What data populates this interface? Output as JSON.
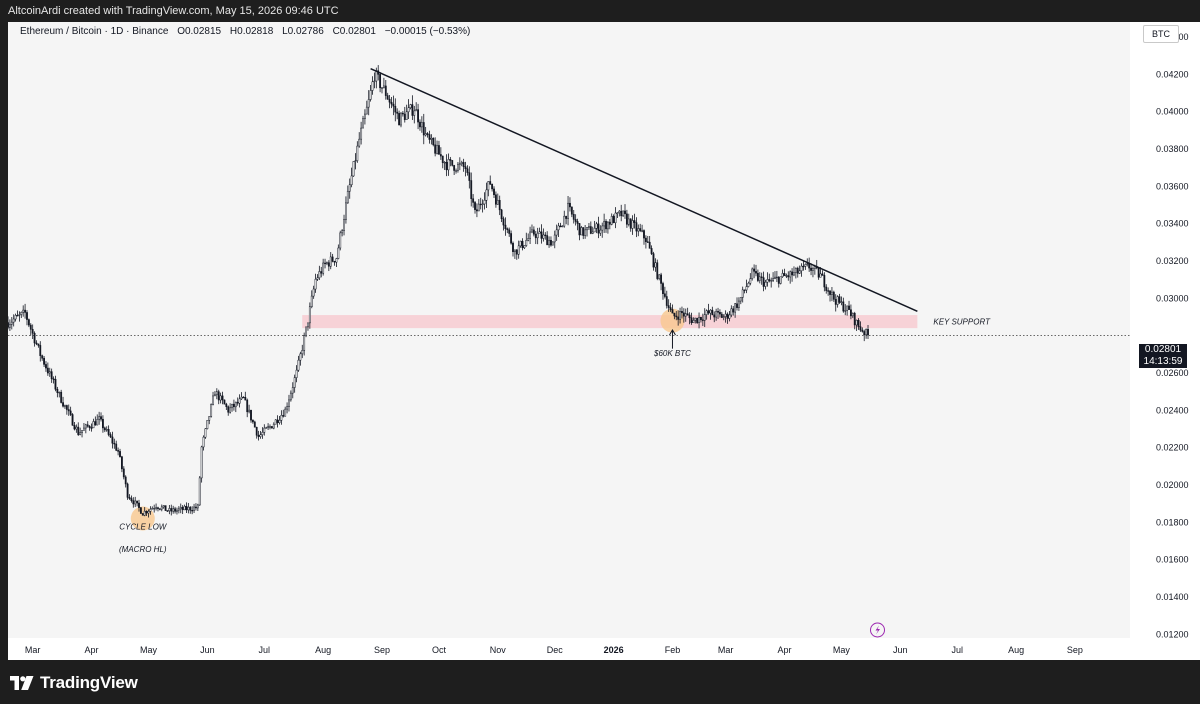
{
  "header": {
    "attribution": "AltcoinArdi created with TradingView.com, May 15, 2026 09:46 UTC"
  },
  "legend": {
    "symbol": "Ethereum / Bitcoin · 1D · Binance",
    "open": "O0.02815",
    "high": "H0.02818",
    "low": "L0.02786",
    "close": "C0.02801",
    "change": "−0.00015 (−0.53%)"
  },
  "currency": "BTC",
  "price_tag": {
    "price": "0.02801",
    "countdown": "14:13:59"
  },
  "footer": {
    "brand": "TradingView",
    "logo_icon": "tradingview-logo-icon"
  },
  "colors": {
    "candle": "#131722",
    "support_zone": "#f7c6cc",
    "highlight": "#f9c88f",
    "background": "#f5f5f5",
    "event_icon": "#9c27b0"
  },
  "chart_data": {
    "type": "candlestick",
    "symbol": "ETH/BTC",
    "interval": "1D",
    "ylim": [
      0.0118,
      0.0448
    ],
    "yticks": [
      "0.04400",
      "0.04200",
      "0.04000",
      "0.03800",
      "0.03600",
      "0.03400",
      "0.03200",
      "0.03000",
      "0.02600",
      "0.02400",
      "0.02200",
      "0.02000",
      "0.01800",
      "0.01600",
      "0.01400",
      "0.01200"
    ],
    "xlim": [
      "2025-02-16",
      "2026-09-30"
    ],
    "xticks": [
      {
        "label": "Mar",
        "date": "2025-03-01"
      },
      {
        "label": "Apr",
        "date": "2025-04-01"
      },
      {
        "label": "May",
        "date": "2025-05-01"
      },
      {
        "label": "Jun",
        "date": "2025-06-01"
      },
      {
        "label": "Jul",
        "date": "2025-07-01"
      },
      {
        "label": "Aug",
        "date": "2025-08-01"
      },
      {
        "label": "Sep",
        "date": "2025-09-01"
      },
      {
        "label": "Oct",
        "date": "2025-10-01"
      },
      {
        "label": "Nov",
        "date": "2025-11-01"
      },
      {
        "label": "Dec",
        "date": "2025-12-01"
      },
      {
        "label": "2026",
        "date": "2026-01-01",
        "bold": true
      },
      {
        "label": "Feb",
        "date": "2026-02-01"
      },
      {
        "label": "Mar",
        "date": "2026-03-01"
      },
      {
        "label": "Apr",
        "date": "2026-04-01"
      },
      {
        "label": "May",
        "date": "2026-05-01"
      },
      {
        "label": "Jun",
        "date": "2026-06-01"
      },
      {
        "label": "Jul",
        "date": "2026-07-01"
      },
      {
        "label": "Aug",
        "date": "2026-08-01"
      },
      {
        "label": "Sep",
        "date": "2026-09-01"
      }
    ],
    "last_price": 0.02801,
    "price_path": [
      [
        "2025-02-16",
        0.0287
      ],
      [
        "2025-02-25",
        0.0292
      ],
      [
        "2025-03-05",
        0.027
      ],
      [
        "2025-03-15",
        0.0248
      ],
      [
        "2025-03-25",
        0.0228
      ],
      [
        "2025-04-05",
        0.0235
      ],
      [
        "2025-04-15",
        0.0218
      ],
      [
        "2025-04-20",
        0.0195
      ],
      [
        "2025-04-28",
        0.0185
      ],
      [
        "2025-05-05",
        0.0189
      ],
      [
        "2025-05-12",
        0.0186
      ],
      [
        "2025-05-20",
        0.0187
      ],
      [
        "2025-05-27",
        0.0188
      ],
      [
        "2025-05-29",
        0.022
      ],
      [
        "2025-06-05",
        0.025
      ],
      [
        "2025-06-12",
        0.024
      ],
      [
        "2025-06-20",
        0.0246
      ],
      [
        "2025-06-28",
        0.0226
      ],
      [
        "2025-07-05",
        0.0232
      ],
      [
        "2025-07-12",
        0.024
      ],
      [
        "2025-07-18",
        0.026
      ],
      [
        "2025-07-23",
        0.0283
      ],
      [
        "2025-07-28",
        0.031
      ],
      [
        "2025-08-02",
        0.0318
      ],
      [
        "2025-08-08",
        0.0322
      ],
      [
        "2025-08-14",
        0.0355
      ],
      [
        "2025-08-20",
        0.0385
      ],
      [
        "2025-08-25",
        0.0405
      ],
      [
        "2025-08-28",
        0.042
      ],
      [
        "2025-09-03",
        0.041
      ],
      [
        "2025-09-10",
        0.0396
      ],
      [
        "2025-09-18",
        0.0402
      ],
      [
        "2025-09-25",
        0.0385
      ],
      [
        "2025-10-05",
        0.0372
      ],
      [
        "2025-10-15",
        0.037
      ],
      [
        "2025-10-20",
        0.0345
      ],
      [
        "2025-10-28",
        0.0362
      ],
      [
        "2025-11-04",
        0.0342
      ],
      [
        "2025-11-10",
        0.0325
      ],
      [
        "2025-11-20",
        0.0335
      ],
      [
        "2025-11-30",
        0.033
      ],
      [
        "2025-12-08",
        0.0348
      ],
      [
        "2025-12-15",
        0.0335
      ],
      [
        "2025-12-25",
        0.0338
      ],
      [
        "2026-01-05",
        0.0345
      ],
      [
        "2026-01-10",
        0.034
      ],
      [
        "2026-01-18",
        0.0332
      ],
      [
        "2026-01-25",
        0.031
      ],
      [
        "2026-02-01",
        0.029
      ],
      [
        "2026-02-06",
        0.0292
      ],
      [
        "2026-02-12",
        0.0288
      ],
      [
        "2026-02-20",
        0.0292
      ],
      [
        "2026-03-01",
        0.029
      ],
      [
        "2026-03-08",
        0.0298
      ],
      [
        "2026-03-15",
        0.0313
      ],
      [
        "2026-03-22",
        0.0308
      ],
      [
        "2026-03-30",
        0.0311
      ],
      [
        "2026-04-06",
        0.0313
      ],
      [
        "2026-04-14",
        0.0317
      ],
      [
        "2026-04-20",
        0.0312
      ],
      [
        "2026-04-27",
        0.03
      ],
      [
        "2026-05-05",
        0.0293
      ],
      [
        "2026-05-10",
        0.0285
      ],
      [
        "2026-05-15",
        0.028
      ]
    ],
    "trendline": {
      "start": [
        "2025-08-26",
        0.0423
      ],
      "end": [
        "2026-06-10",
        0.0293
      ]
    },
    "support_zone": {
      "from": "2025-07-21",
      "to": "2026-06-10",
      "low": 0.0284,
      "high": 0.0291,
      "label": "KEY SUPPORT"
    },
    "annotations": [
      {
        "text": "CYCLE LOW",
        "date": "2025-04-28",
        "price": 0.0176
      },
      {
        "text": "(MACRO HL)",
        "date": "2025-04-28",
        "price": 0.0164
      },
      {
        "text": "$60K BTC",
        "date": "2026-02-01",
        "price": 0.0269
      }
    ],
    "highlights": [
      {
        "name": "cycle-low",
        "date": "2025-04-28",
        "price": 0.0182
      },
      {
        "name": "60k-btc",
        "date": "2026-02-01",
        "price": 0.0288
      }
    ],
    "arrow": {
      "date": "2026-02-01",
      "from_price": 0.0273,
      "to_price": 0.0283
    }
  }
}
